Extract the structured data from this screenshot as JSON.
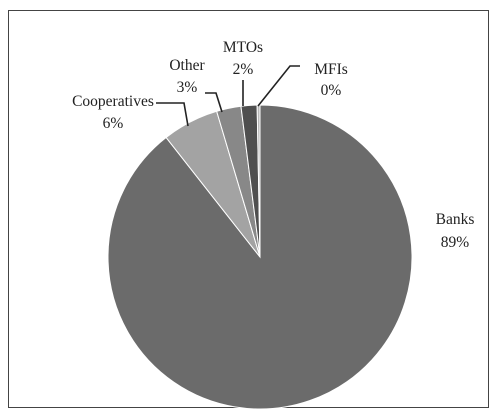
{
  "chart_data": {
    "type": "pie",
    "title": "",
    "slices": [
      {
        "label": "Banks",
        "value": 89,
        "value_label": "89%",
        "color": "#6b6b6b"
      },
      {
        "label": "Cooperatives",
        "value": 6,
        "value_label": "6%",
        "color": "#a3a3a3"
      },
      {
        "label": "Other",
        "value": 3,
        "value_label": "3%",
        "color": "#888888"
      },
      {
        "label": "MTOs",
        "value": 2,
        "value_label": "2%",
        "color": "#4f4f4f"
      },
      {
        "label": "MFIs",
        "value": 0,
        "value_label": "0%",
        "color": "#b8b8b8"
      }
    ],
    "legend": "none",
    "labels": "outside with leader lines"
  }
}
